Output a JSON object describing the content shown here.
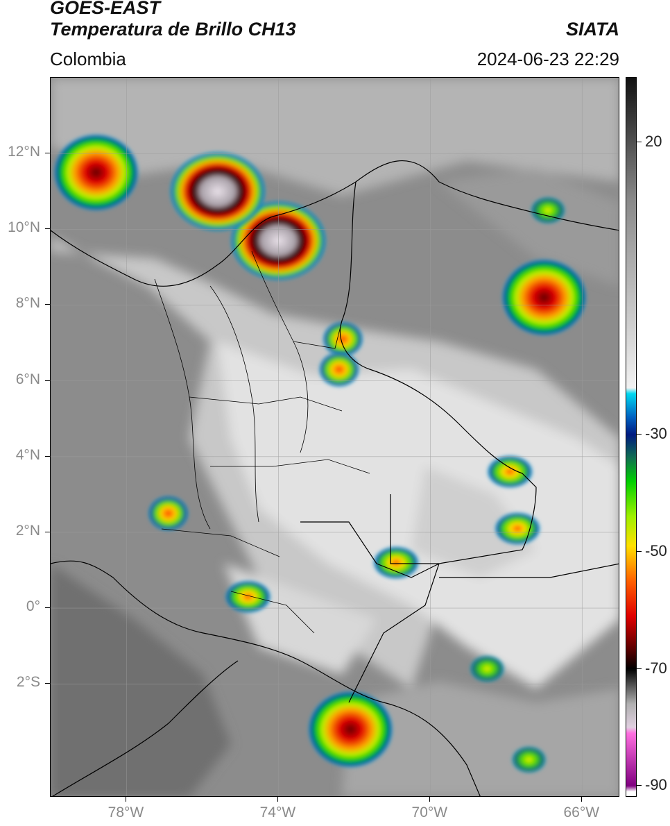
{
  "header": {
    "title_line1": "GOES-EAST",
    "title_line2": "Temperatura de Brillo CH13",
    "brand": "SIATA",
    "region": "Colombia",
    "timestamp": "2024-06-23 22:29"
  },
  "map": {
    "lon_min": -80,
    "lon_max": -65,
    "lat_min": -5,
    "lat_max": 14,
    "lat_ticks": [
      {
        "value": 12,
        "label": "12°N"
      },
      {
        "value": 10,
        "label": "10°N"
      },
      {
        "value": 8,
        "label": "8°N"
      },
      {
        "value": 6,
        "label": "6°N"
      },
      {
        "value": 4,
        "label": "4°N"
      },
      {
        "value": 2,
        "label": "2°N"
      },
      {
        "value": 0,
        "label": "0°"
      },
      {
        "value": -2,
        "label": "2°S"
      }
    ],
    "lon_ticks": [
      {
        "value": -78,
        "label": "78°W"
      },
      {
        "value": -74,
        "label": "74°W"
      },
      {
        "value": -70,
        "label": "70°W"
      },
      {
        "value": -66,
        "label": "66°W"
      }
    ],
    "storm_cells": [
      {
        "lon": -74.0,
        "lat": 9.7,
        "intensity": "very-cold"
      },
      {
        "lon": -75.6,
        "lat": 11.0,
        "intensity": "very-cold"
      },
      {
        "lon": -67.0,
        "lat": 8.2,
        "intensity": "cold"
      },
      {
        "lon": -72.1,
        "lat": -3.2,
        "intensity": "cold"
      },
      {
        "lon": -72.3,
        "lat": 7.1,
        "intensity": "cool"
      },
      {
        "lon": -72.4,
        "lat": 6.3,
        "intensity": "cool"
      },
      {
        "lon": -76.9,
        "lat": 2.5,
        "intensity": "cool"
      },
      {
        "lon": -74.8,
        "lat": 0.3,
        "intensity": "moderate"
      },
      {
        "lon": -70.9,
        "lat": 1.2,
        "intensity": "moderate"
      },
      {
        "lon": -67.7,
        "lat": 2.1,
        "intensity": "moderate"
      },
      {
        "lon": -67.9,
        "lat": 3.6,
        "intensity": "moderate"
      },
      {
        "lon": -68.5,
        "lat": -1.6,
        "intensity": "mild"
      },
      {
        "lon": -67.4,
        "lat": -4.0,
        "intensity": "mild"
      },
      {
        "lon": -66.9,
        "lat": 10.5,
        "intensity": "mild"
      },
      {
        "lon": -78.8,
        "lat": 11.5,
        "intensity": "cold"
      }
    ]
  },
  "colorbar": {
    "vmin": -92,
    "vmax": 31,
    "ticks": [
      {
        "value": 20,
        "label": "20"
      },
      {
        "value": -30,
        "label": "-30"
      },
      {
        "value": -50,
        "label": "-50"
      },
      {
        "value": -70,
        "label": "-70"
      },
      {
        "value": -90,
        "label": "-90"
      }
    ],
    "stops": [
      {
        "value": 31,
        "color": "#111111"
      },
      {
        "value": 10,
        "color": "#8a8a8a"
      },
      {
        "value": -22,
        "color": "#f2f2f2"
      },
      {
        "value": -23,
        "color": "#00d8f0"
      },
      {
        "value": -27,
        "color": "#0060c0"
      },
      {
        "value": -30,
        "color": "#001a80"
      },
      {
        "value": -34,
        "color": "#107050"
      },
      {
        "value": -38,
        "color": "#00d000"
      },
      {
        "value": -44,
        "color": "#a0f000"
      },
      {
        "value": -49,
        "color": "#ffe000"
      },
      {
        "value": -55,
        "color": "#ff6000"
      },
      {
        "value": -61,
        "color": "#e00000"
      },
      {
        "value": -67,
        "color": "#500000"
      },
      {
        "value": -70,
        "color": "#000000"
      },
      {
        "value": -76,
        "color": "#b0b0b0"
      },
      {
        "value": -80,
        "color": "#e0d0e0"
      },
      {
        "value": -81,
        "color": "#ff70e0"
      },
      {
        "value": -90,
        "color": "#800080"
      },
      {
        "value": -91,
        "color": "#ffffff"
      }
    ]
  }
}
